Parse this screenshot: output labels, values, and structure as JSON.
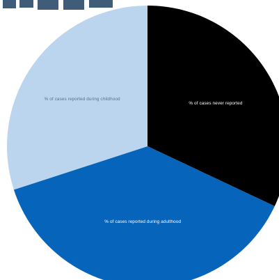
{
  "chart_data": {
    "type": "pie",
    "title": "",
    "series": [
      {
        "values": [
          32,
          38,
          30
        ],
        "labels": [
          "% of cases never reported",
          "% of cases reported during adulthood",
          "% of cases reported during childhood"
        ],
        "colors": [
          "#000000",
          "#0665ba",
          "#bcd5ee"
        ],
        "label_colors": [
          "#ffffff",
          "#ffffff",
          "#5a6f86"
        ]
      }
    ],
    "start_at": "top",
    "direction": "clockwise",
    "legend": "none"
  },
  "colors": {
    "background": "#ffffff",
    "title_fragment": "#3f5c78"
  }
}
